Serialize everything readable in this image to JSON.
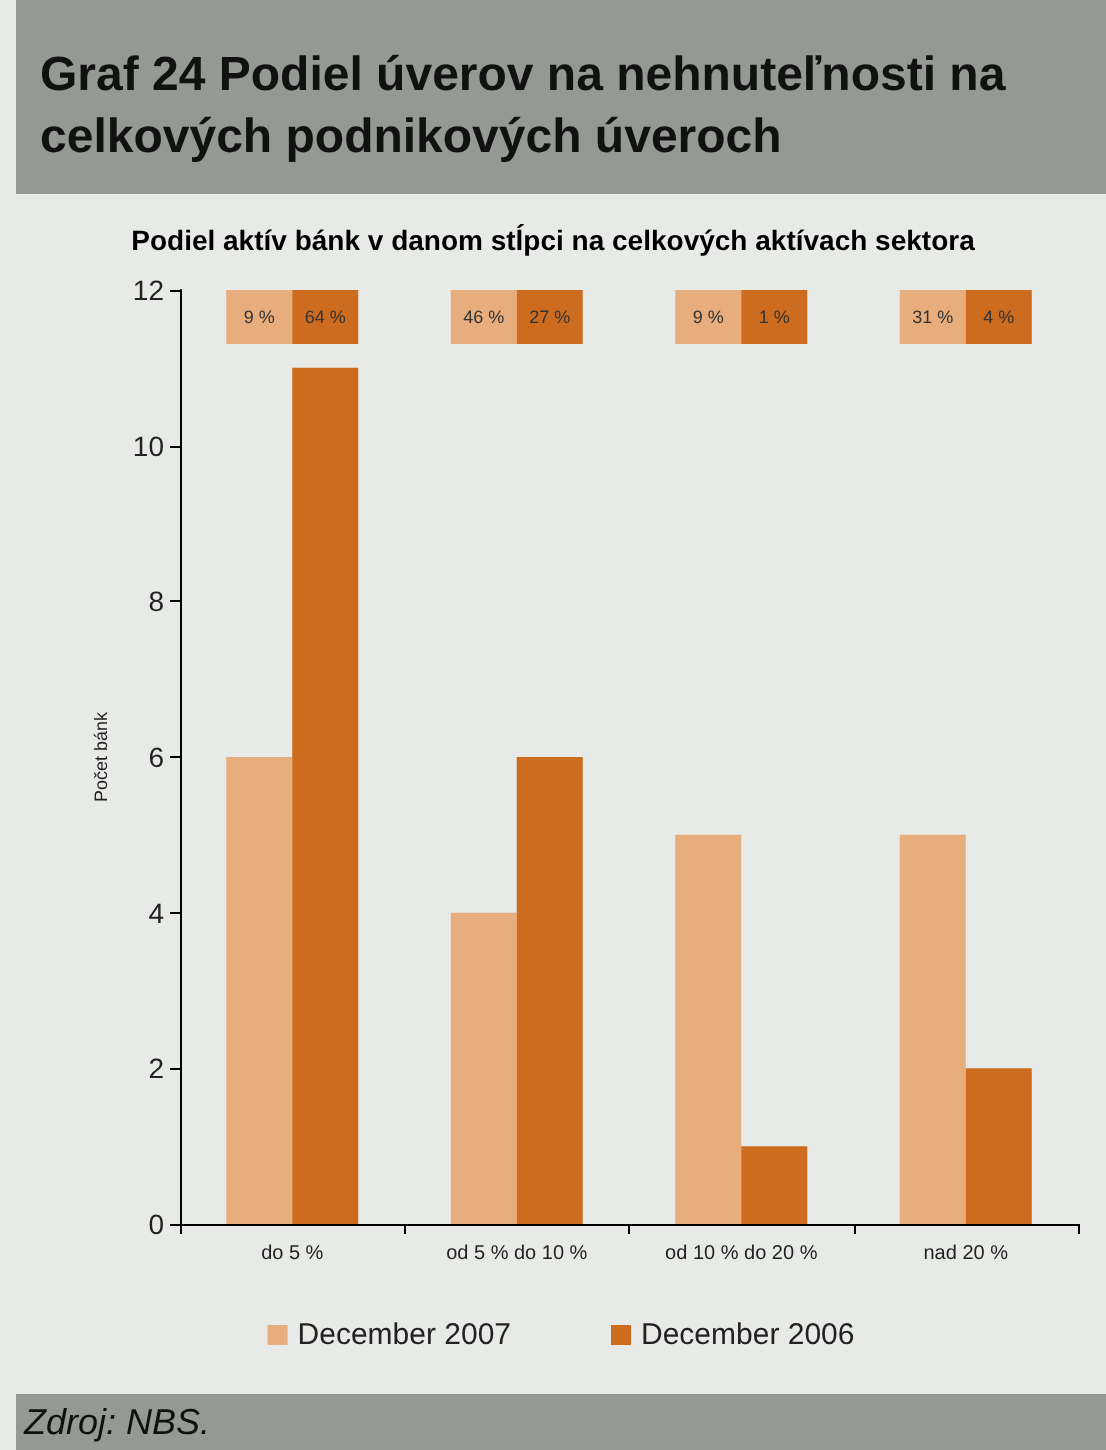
{
  "chart_data": {
    "type": "bar",
    "title": "Graf 24 Podiel úverov na nehnuteľnosti na celkových podnikových úveroch",
    "subtitle": "Podiel aktív bánk v danom stĺpci na celkových aktívach sektora",
    "ylabel": "Počet bánk",
    "categories": [
      "do 5 %",
      "od 5 % do 10 %",
      "od 10 % do 20 %",
      "nad 20 %"
    ],
    "series": [
      {
        "name": "December 2007",
        "color": "#e8ad7d",
        "values": [
          6,
          4,
          5,
          5
        ]
      },
      {
        "name": "December 2006",
        "color": "#cd6c1e",
        "values": [
          11,
          6,
          1,
          2
        ]
      }
    ],
    "ylim": [
      0,
      12
    ],
    "yticks": [
      0,
      2,
      4,
      6,
      8,
      10,
      12
    ],
    "grid": false,
    "legend": "bottom",
    "annotations": [
      "9 %",
      "64 %",
      "46 %",
      "27 %",
      "9 %",
      "1 %",
      "31 %",
      "4 %",
      "Zdroj: NBS."
    ]
  }
}
